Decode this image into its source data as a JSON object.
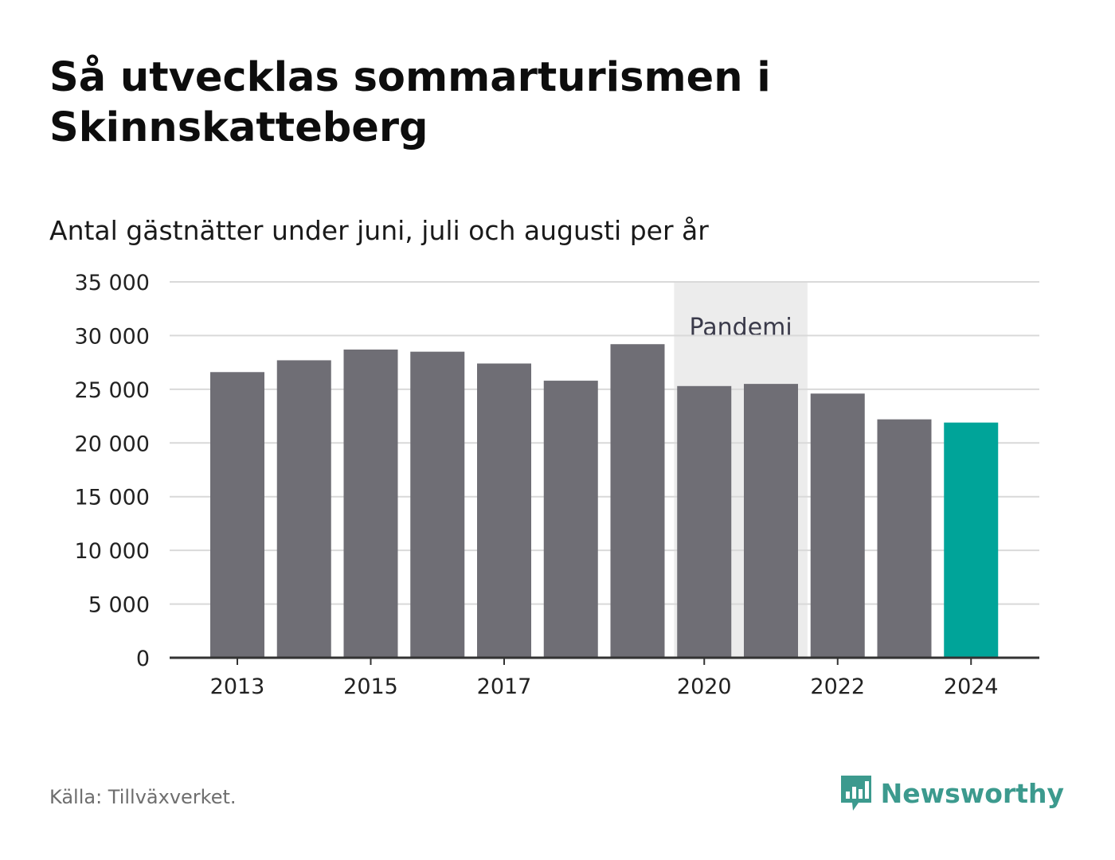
{
  "title": "Så utvecklas sommarturismen i Skinnskatteberg",
  "subtitle": "Antal gästnätter under juni, juli och augusti per år",
  "source": "Källa: Tillväxverket.",
  "brand": {
    "name": "Newsworthy",
    "icon": "bar-chart-speech-bubble-icon",
    "color": "#3c9a8e"
  },
  "colors": {
    "bar": "#6f6e75",
    "highlight": "#00a499",
    "band": "#ececec",
    "grid": "#d9d9d9",
    "axis": "#333333"
  },
  "chart_data": {
    "type": "bar",
    "categories": [
      2013,
      2014,
      2015,
      2016,
      2017,
      2018,
      2019,
      2020,
      2021,
      2022,
      2023,
      2024
    ],
    "values": [
      26600,
      27700,
      28700,
      28500,
      27400,
      25800,
      29200,
      25300,
      25500,
      24600,
      22200,
      21900
    ],
    "highlight_category": 2024,
    "ylim": [
      0,
      35000
    ],
    "yticks": [
      0,
      5000,
      10000,
      15000,
      20000,
      25000,
      30000,
      35000
    ],
    "ytick_labels": [
      "0",
      "5 000",
      "10 000",
      "15 000",
      "20 000",
      "25 000",
      "30 000",
      "35 000"
    ],
    "xtick_labels": [
      "2013",
      "2015",
      "2017",
      "2020",
      "2022",
      "2024"
    ],
    "grid": true,
    "annotations": [
      {
        "type": "band",
        "from": 2020,
        "to": 2021,
        "label": "Pandemi"
      }
    ]
  }
}
